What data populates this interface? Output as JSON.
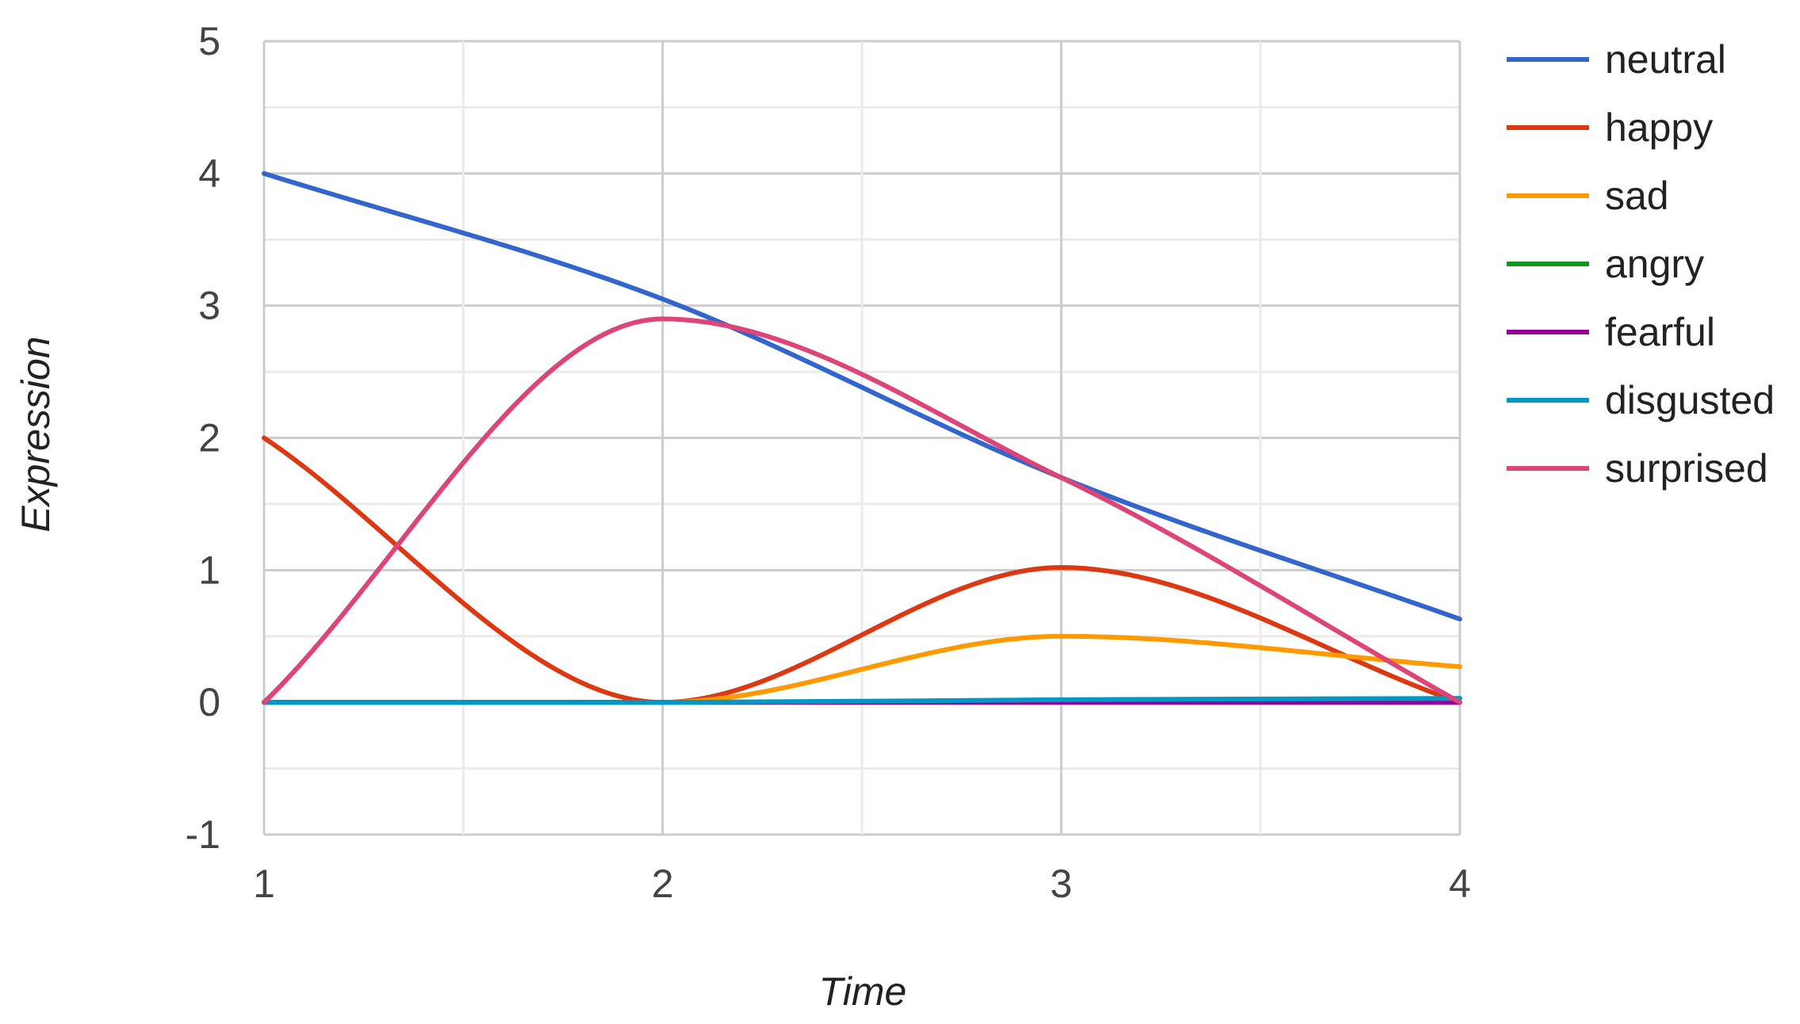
{
  "chart_data": {
    "type": "line",
    "xlabel": "Time",
    "ylabel": "Expression",
    "xlim": [
      1,
      4
    ],
    "ylim": [
      -1,
      5
    ],
    "x_ticks": [
      "1",
      "2",
      "3",
      "4"
    ],
    "y_ticks": [
      "-1",
      "0",
      "1",
      "2",
      "3",
      "4",
      "5"
    ],
    "grid": true,
    "legend_position": "right",
    "curve": "smooth",
    "x": [
      1,
      2,
      3,
      4
    ],
    "series": [
      {
        "name": "neutral",
        "color": "#3366cc",
        "values": [
          4.0,
          3.05,
          1.7,
          0.63
        ]
      },
      {
        "name": "happy",
        "color": "#dc3912",
        "values": [
          2.0,
          0.0,
          1.02,
          0.0
        ]
      },
      {
        "name": "sad",
        "color": "#ff9900",
        "values": [
          0.0,
          0.0,
          0.5,
          0.27
        ]
      },
      {
        "name": "angry",
        "color": "#109618",
        "values": [
          0.0,
          0.0,
          0.0,
          0.0
        ]
      },
      {
        "name": "fearful",
        "color": "#990099",
        "values": [
          0.0,
          0.0,
          0.0,
          0.0
        ]
      },
      {
        "name": "disgusted",
        "color": "#0099c6",
        "values": [
          0.0,
          0.0,
          0.02,
          0.03
        ]
      },
      {
        "name": "surprised",
        "color": "#dd4477",
        "values": [
          0.0,
          2.9,
          1.7,
          0.0
        ]
      }
    ]
  }
}
